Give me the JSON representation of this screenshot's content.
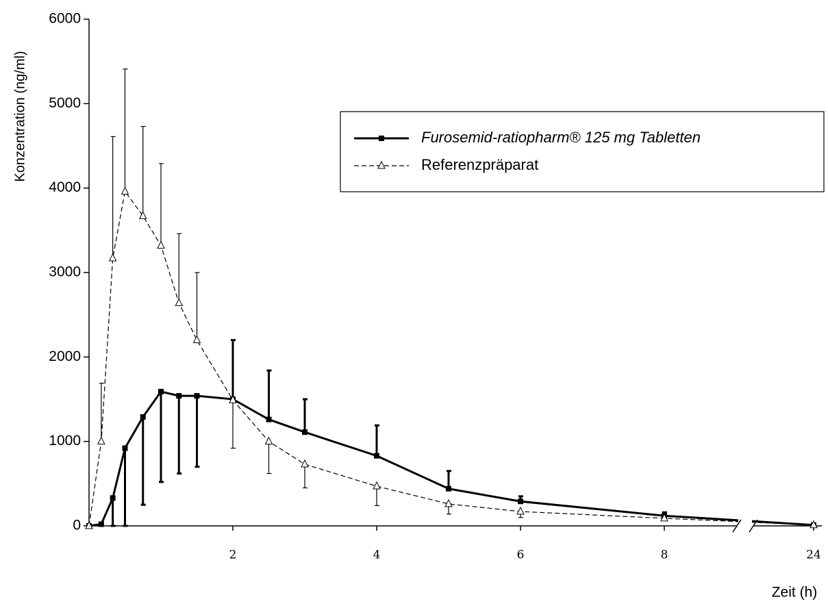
{
  "chart_data": {
    "type": "line",
    "x_label": "Zeit (h)",
    "y_label": "Konzentration (ng/ml)",
    "x": [
      0,
      0.17,
      0.33,
      0.5,
      0.75,
      1,
      1.25,
      1.5,
      2,
      2.5,
      3,
      4,
      5,
      6,
      8,
      24
    ],
    "series": [
      {
        "name": "Furosemid-ratiopharm® 125 mg Tabletten",
        "color": "#000000",
        "line_style": "solid",
        "marker": "square",
        "values": [
          0,
          20,
          330,
          920,
          1290,
          1590,
          1540,
          1540,
          1500,
          1260,
          1110,
          830,
          440,
          290,
          120,
          10
        ],
        "errors": [
          0,
          0,
          330,
          920,
          1040,
          1070,
          920,
          840,
          700,
          580,
          390,
          360,
          210,
          60,
          40,
          10
        ]
      },
      {
        "name": "Referenzpräparat",
        "color": "#000000",
        "line_style": "dashed",
        "marker": "triangle-open",
        "values": [
          0,
          1000,
          3170,
          3960,
          3670,
          3320,
          2640,
          2200,
          1490,
          1000,
          730,
          470,
          260,
          170,
          90,
          10
        ],
        "errors": [
          0,
          690,
          1440,
          1450,
          1060,
          970,
          820,
          800,
          570,
          380,
          280,
          230,
          120,
          70,
          20,
          0
        ]
      }
    ],
    "xlim": [
      0,
      24
    ],
    "xticks": [
      2,
      4,
      6,
      8,
      24
    ],
    "x_axis_break": true,
    "ylim": [
      0,
      6000
    ],
    "yticks": [
      0,
      1000,
      2000,
      3000,
      4000,
      5000,
      6000
    ],
    "grid": false,
    "legend_position": "upper right"
  }
}
